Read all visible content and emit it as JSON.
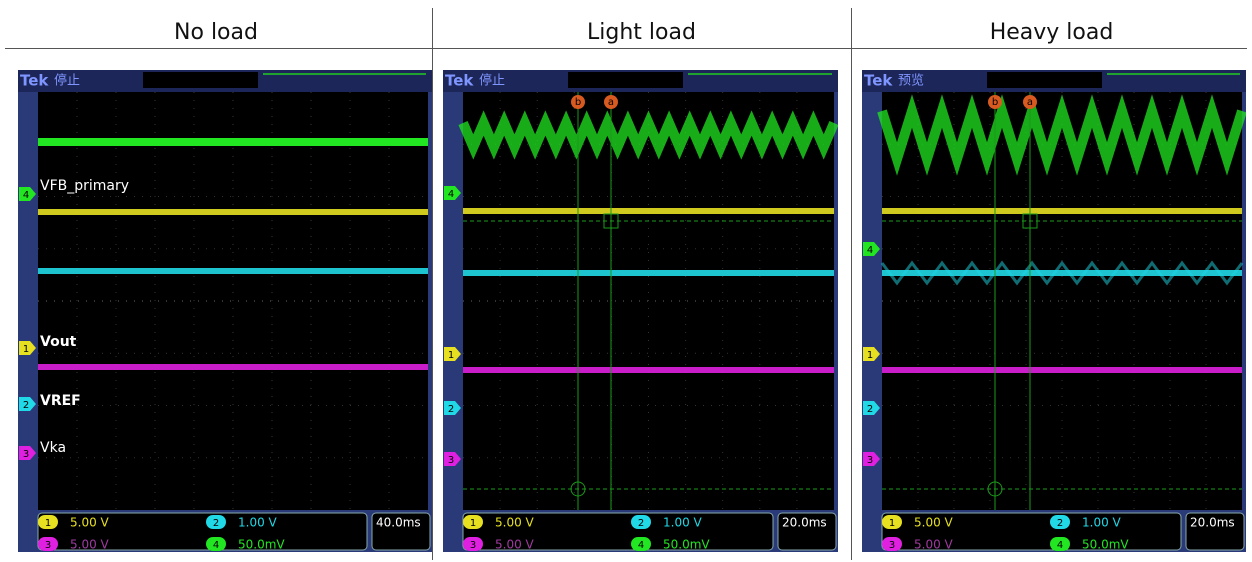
{
  "headers": [
    "No load",
    "Light load",
    "Heavy load"
  ],
  "scopes": [
    {
      "brand": "Tek",
      "status": "停止",
      "timebase": "40.0ms",
      "channels": [
        {
          "number": "1",
          "scale": "5.00 V"
        },
        {
          "number": "2",
          "scale": "1.00 V"
        },
        {
          "number": "3",
          "scale": "5.00 V"
        },
        {
          "number": "4",
          "scale": "50.0mV"
        }
      ],
      "trace_labels": [
        "VFB_primary",
        "Vout",
        "VREF",
        "Vka"
      ],
      "cursors": []
    },
    {
      "brand": "Tek",
      "status": "停止",
      "timebase": "20.0ms",
      "channels": [
        {
          "number": "1",
          "scale": "5.00 V"
        },
        {
          "number": "2",
          "scale": "1.00 V"
        },
        {
          "number": "3",
          "scale": "5.00 V"
        },
        {
          "number": "4",
          "scale": "50.0mV"
        }
      ],
      "trace_labels": [],
      "cursors": [
        "b",
        "a"
      ]
    },
    {
      "brand": "Tek",
      "status": "预览",
      "timebase": "20.0ms",
      "channels": [
        {
          "number": "1",
          "scale": "5.00 V"
        },
        {
          "number": "2",
          "scale": "1.00 V"
        },
        {
          "number": "3",
          "scale": "5.00 V"
        },
        {
          "number": "4",
          "scale": "50.0mV"
        }
      ],
      "trace_labels": [],
      "cursors": [
        "b",
        "a"
      ]
    }
  ]
}
